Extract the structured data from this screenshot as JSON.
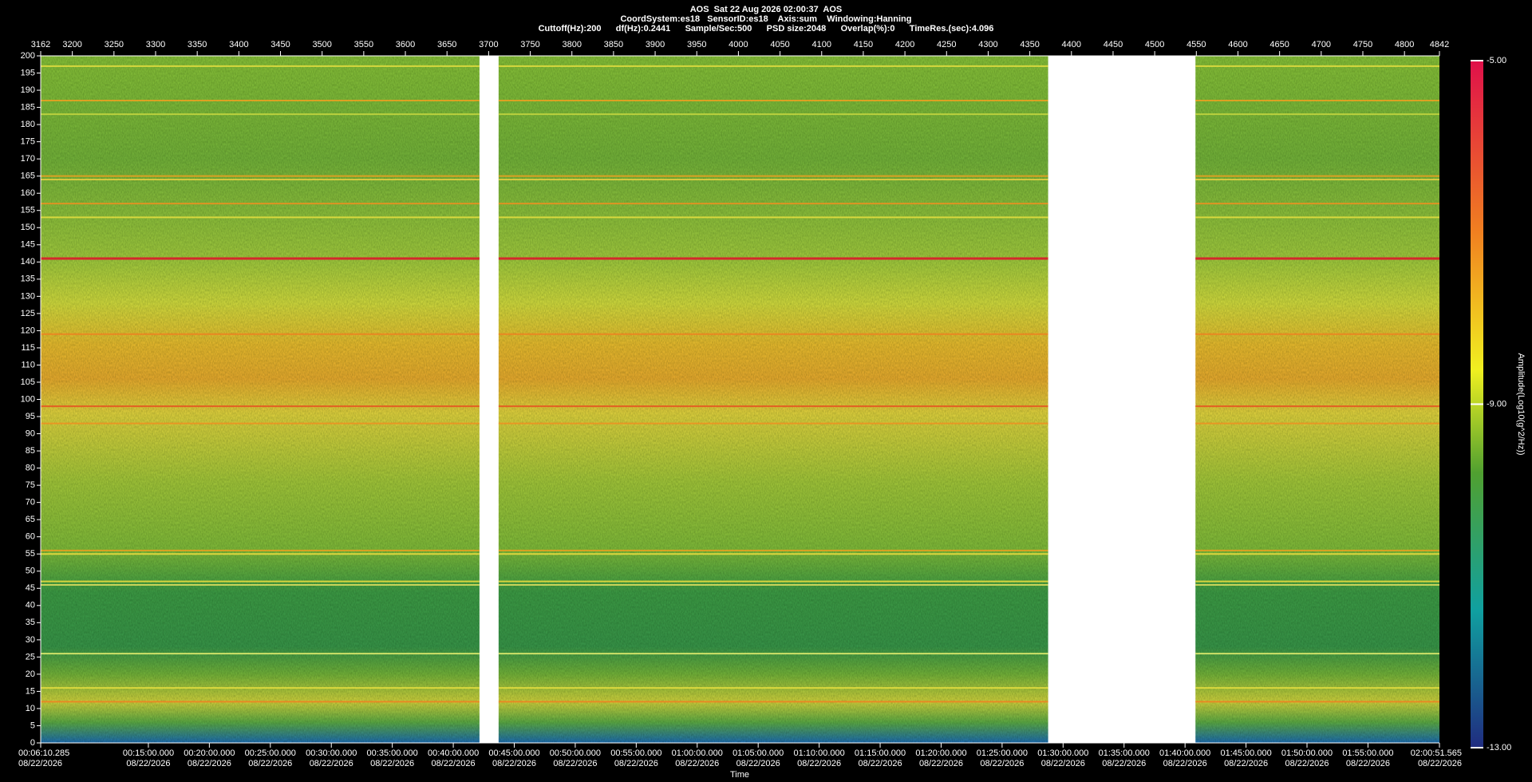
{
  "chart_data": {
    "type": "spectrogram",
    "title": "AOS  Sat 22 Aug 2026 02:00:37  AOS",
    "subtitle": "CoordSystem:es18   SensorID:es18    Axis:sum    Windowing:Hanning",
    "info": "Cuttoff(Hz):200      df(Hz):0.2441      Sample/Sec:500      PSD size:2048      Overlap(%):0      TimeRes.(sec):4.096",
    "x_label": "Time",
    "xlim": [
      3162,
      4842
    ],
    "xticks": [
      3162,
      3200,
      3250,
      3300,
      3350,
      3400,
      3450,
      3500,
      3550,
      3600,
      3650,
      3700,
      3750,
      3800,
      3850,
      3900,
      3950,
      4000,
      4050,
      4100,
      4150,
      4200,
      4250,
      4300,
      4350,
      4400,
      4450,
      4500,
      4550,
      4600,
      4650,
      4700,
      4750,
      4800,
      4842
    ],
    "time_ticks": [
      {
        "value": 3162,
        "label": "00:06:10.285",
        "date": "08/22/2026"
      },
      {
        "value": 3291.33,
        "label": "00:15:00.000",
        "date": "08/22/2026"
      },
      {
        "value": 3364.57,
        "label": "00:20:00.000",
        "date": "08/22/2026"
      },
      {
        "value": 3437.81,
        "label": "00:25:00.000",
        "date": "08/22/2026"
      },
      {
        "value": 3511.06,
        "label": "00:30:00.000",
        "date": "08/22/2026"
      },
      {
        "value": 3584.3,
        "label": "00:35:00.000",
        "date": "08/22/2026"
      },
      {
        "value": 3657.54,
        "label": "00:40:00.000",
        "date": "08/22/2026"
      },
      {
        "value": 3730.78,
        "label": "00:45:00.000",
        "date": "08/22/2026"
      },
      {
        "value": 3804.03,
        "label": "00:50:00.000",
        "date": "08/22/2026"
      },
      {
        "value": 3877.27,
        "label": "00:55:00.000",
        "date": "08/22/2026"
      },
      {
        "value": 3950.51,
        "label": "01:00:00.000",
        "date": "08/22/2026"
      },
      {
        "value": 4023.75,
        "label": "01:05:00.000",
        "date": "08/22/2026"
      },
      {
        "value": 4096.99,
        "label": "01:10:00.000",
        "date": "08/22/2026"
      },
      {
        "value": 4170.24,
        "label": "01:15:00.000",
        "date": "08/22/2026"
      },
      {
        "value": 4243.48,
        "label": "01:20:00.000",
        "date": "08/22/2026"
      },
      {
        "value": 4316.72,
        "label": "01:25:00.000",
        "date": "08/22/2026"
      },
      {
        "value": 4389.96,
        "label": "01:30:00.000",
        "date": "08/22/2026"
      },
      {
        "value": 4463.21,
        "label": "01:35:00.000",
        "date": "08/22/2026"
      },
      {
        "value": 4536.45,
        "label": "01:40:00.000",
        "date": "08/22/2026"
      },
      {
        "value": 4609.69,
        "label": "01:45:00.000",
        "date": "08/22/2026"
      },
      {
        "value": 4682.93,
        "label": "01:50:00.000",
        "date": "08/22/2026"
      },
      {
        "value": 4756.17,
        "label": "01:55:00.000",
        "date": "08/22/2026"
      },
      {
        "value": 4842,
        "label": "02:00:51.565",
        "date": "08/22/2026"
      }
    ],
    "ylim": [
      0,
      200
    ],
    "yticks": [
      0,
      5,
      10,
      15,
      20,
      25,
      30,
      35,
      40,
      45,
      50,
      55,
      60,
      65,
      70,
      75,
      80,
      85,
      90,
      95,
      100,
      105,
      110,
      115,
      120,
      125,
      130,
      135,
      140,
      145,
      150,
      155,
      160,
      165,
      170,
      175,
      180,
      185,
      190,
      195,
      200
    ],
    "segments": [
      {
        "start": 3162,
        "end": 3689
      },
      {
        "start": 3712,
        "end": 4372
      },
      {
        "start": 4549,
        "end": 4842
      }
    ],
    "lines": [
      {
        "value": 197,
        "color": "#e8e040"
      },
      {
        "value": 187,
        "color": "#f0a020"
      },
      {
        "value": 183,
        "color": "#c8d840"
      },
      {
        "value": 165,
        "color": "#f0a020"
      },
      {
        "value": 164,
        "color": "#e8d040"
      },
      {
        "value": 157,
        "color": "#f09020"
      },
      {
        "value": 153,
        "color": "#e8e040"
      },
      {
        "value": 141,
        "color": "#e0102a"
      },
      {
        "value": 119,
        "color": "#f08020"
      },
      {
        "value": 98,
        "color": "#e85020"
      },
      {
        "value": 93,
        "color": "#f09020"
      },
      {
        "value": 56,
        "color": "#f0a020"
      },
      {
        "value": 55,
        "color": "#f0e040"
      },
      {
        "value": 47,
        "color": "#f0e040"
      },
      {
        "value": 46,
        "color": "#e0e060"
      },
      {
        "value": 26,
        "color": "#e8f070"
      },
      {
        "value": 16,
        "color": "#e8e040"
      },
      {
        "value": 12,
        "color": "#f08020"
      }
    ],
    "colorbar": {
      "label": "Amplitude(Log10(g^2/Hz))",
      "lim": [
        -13,
        -5
      ],
      "ticks": [
        {
          "value": -5,
          "label": "-5.00"
        },
        {
          "value": -9,
          "label": "-9.00"
        },
        {
          "value": -13,
          "label": "-13.00"
        }
      ]
    }
  }
}
